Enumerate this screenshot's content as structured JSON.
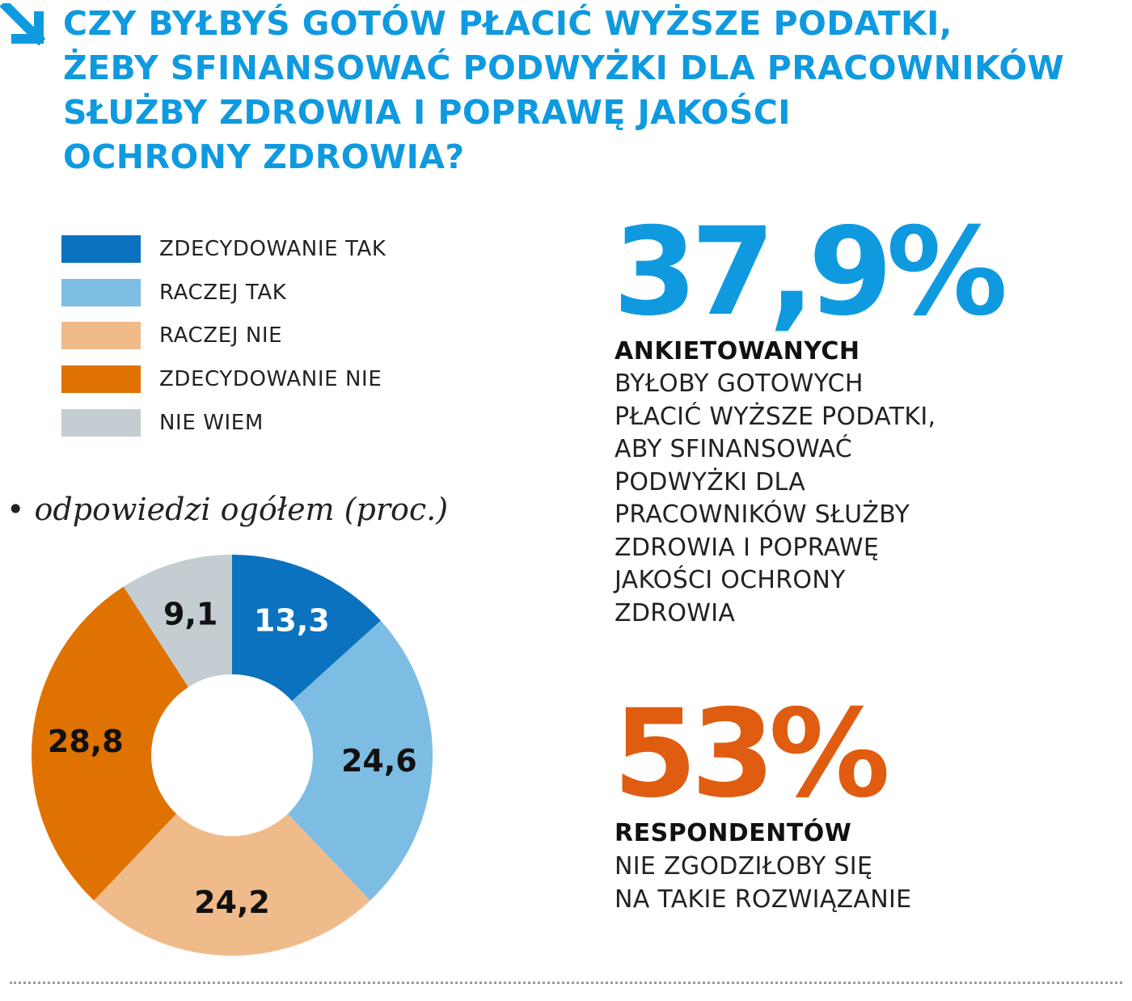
{
  "title_lines": [
    "CZY BYŁBYŚ GOTÓW PŁACIĆ WYŻSZE PODATKI,",
    "ŻEBY SFINANSOWAĆ PODWYŻKI DLA PRACOWNIKÓW",
    "SŁUŻBY ZDROWIA I POPRAWĘ JAKOŚCI",
    "OCHRONY ZDROWIA?"
  ],
  "arrow_icon": "arrow-down-right-icon",
  "legend": [
    {
      "label": "ZDECYDOWANIE TAK",
      "color": "#0b72bf"
    },
    {
      "label": "RACZEJ TAK",
      "color": "#7dbde3"
    },
    {
      "label": "RACZEJ NIE",
      "color": "#f0bb8b"
    },
    {
      "label": "ZDECYDOWANIE NIE",
      "color": "#df7200"
    },
    {
      "label": "NIE WIEM",
      "color": "#c4cdd1"
    }
  ],
  "subtitle": "odpowiedzi ogółem (proc.)",
  "chart_data": {
    "type": "pie",
    "variant": "donut",
    "title": "odpowiedzi ogółem (proc.)",
    "categories": [
      "ZDECYDOWANIE TAK",
      "RACZEJ TAK",
      "RACZEJ NIE",
      "ZDECYDOWANIE NIE",
      "NIE WIEM"
    ],
    "values": [
      13.3,
      24.6,
      24.2,
      28.8,
      9.1
    ],
    "labels": [
      "13,3",
      "24,6",
      "24,2",
      "28,8",
      "9,1"
    ],
    "colors": [
      "#0b72bf",
      "#7dbde3",
      "#f0bb8b",
      "#df7200",
      "#c4cdd1"
    ],
    "label_colors": [
      "#ffffff",
      "#111111",
      "#111111",
      "#111111",
      "#111111"
    ],
    "start": "top",
    "direction": "clockwise",
    "unit": "%"
  },
  "stat1": {
    "value": "37,9%",
    "heading": "ANKIETOWANYCH",
    "lines": [
      "BYŁOBY GOTOWYCH",
      "PŁACIĆ WYŻSZE PODATKI,",
      "ABY SFINANSOWAĆ",
      "PODWYŻKI DLA",
      "PRACOWNIKÓW SŁUŻBY",
      "ZDROWIA I POPRAWĘ",
      "JAKOŚCI OCHRONY",
      "ZDROWIA"
    ],
    "color": "#0f9ae0"
  },
  "stat2": {
    "value": "53%",
    "heading": "RESPONDENTÓW",
    "lines": [
      "NIE ZGODZIŁOBY SIĘ",
      "NA TAKIE ROZWIĄZANIE"
    ],
    "color": "#e05c10"
  }
}
